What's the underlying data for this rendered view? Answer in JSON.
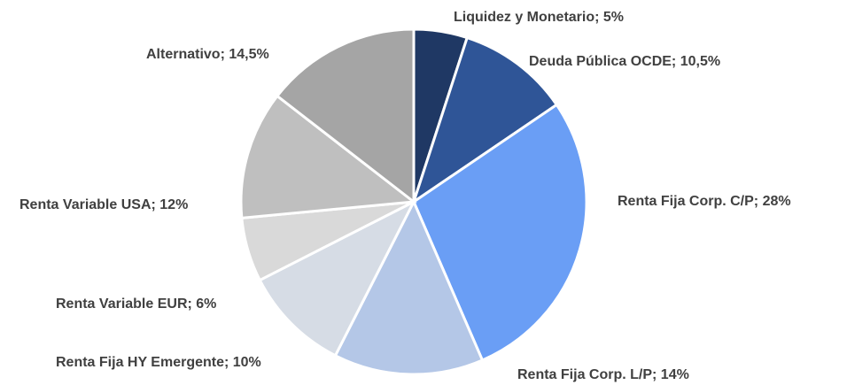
{
  "chart_data": {
    "type": "pie",
    "values": [
      5,
      10.5,
      28,
      14,
      10,
      6,
      12,
      14.5
    ],
    "value_labels": [
      "Liquidez y Monetario; 5%",
      "Deuda Pública OCDE; 10,5%",
      "Renta Fija Corp. C/P; 28%",
      "Renta Fija Corp. L/P; 14%",
      "Renta Fija HY Emergente; 10%",
      "Renta Variable EUR; 6%",
      "Renta Variable USA; 12%",
      "Alternativo; 14,5%"
    ],
    "colors": [
      "#1f3864",
      "#2f5597",
      "#6a9ef5",
      "#b4c7e7",
      "#d6dce5",
      "#d9d9d9",
      "#bfbfbf",
      "#a5a5a5"
    ]
  }
}
